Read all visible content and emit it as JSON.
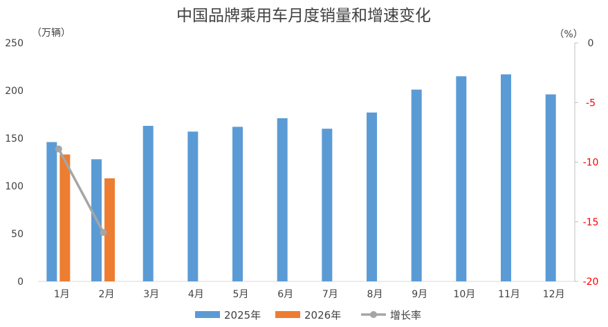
{
  "chart_data": {
    "type": "bar",
    "title": "中国品牌乘用车月度销量和增速变化",
    "y_left_unit": "（万辆）",
    "y_right_unit": "（%）",
    "categories": [
      "1月",
      "2月",
      "3月",
      "4月",
      "5月",
      "6月",
      "7月",
      "8月",
      "9月",
      "10月",
      "11月",
      "12月"
    ],
    "y_left_range": [
      0,
      250
    ],
    "y_left_ticks": [
      "0",
      "50",
      "100",
      "150",
      "200",
      "250"
    ],
    "y_right_range": [
      -20,
      0
    ],
    "y_right_ticks": [
      "0",
      "-5",
      "-10",
      "-15",
      "-20"
    ],
    "series": [
      {
        "name": "2025年",
        "type": "bar",
        "axis": "left",
        "color": "#5B9BD5",
        "values": [
          146,
          128,
          163,
          157,
          162,
          171,
          160,
          177,
          201,
          215,
          217,
          196
        ]
      },
      {
        "name": "2026年",
        "type": "bar",
        "axis": "left",
        "color": "#ED7D31",
        "values": [
          133,
          108,
          null,
          null,
          null,
          null,
          null,
          null,
          null,
          null,
          null,
          null
        ]
      },
      {
        "name": "增长率",
        "type": "line",
        "axis": "right",
        "color": "#A5A5A5",
        "values": [
          -8.9,
          -15.9,
          null,
          null,
          null,
          null,
          null,
          null,
          null,
          null,
          null,
          null
        ]
      }
    ],
    "grid": false,
    "legend_position": "bottom-center",
    "right_tick_color": "#FF0000"
  }
}
